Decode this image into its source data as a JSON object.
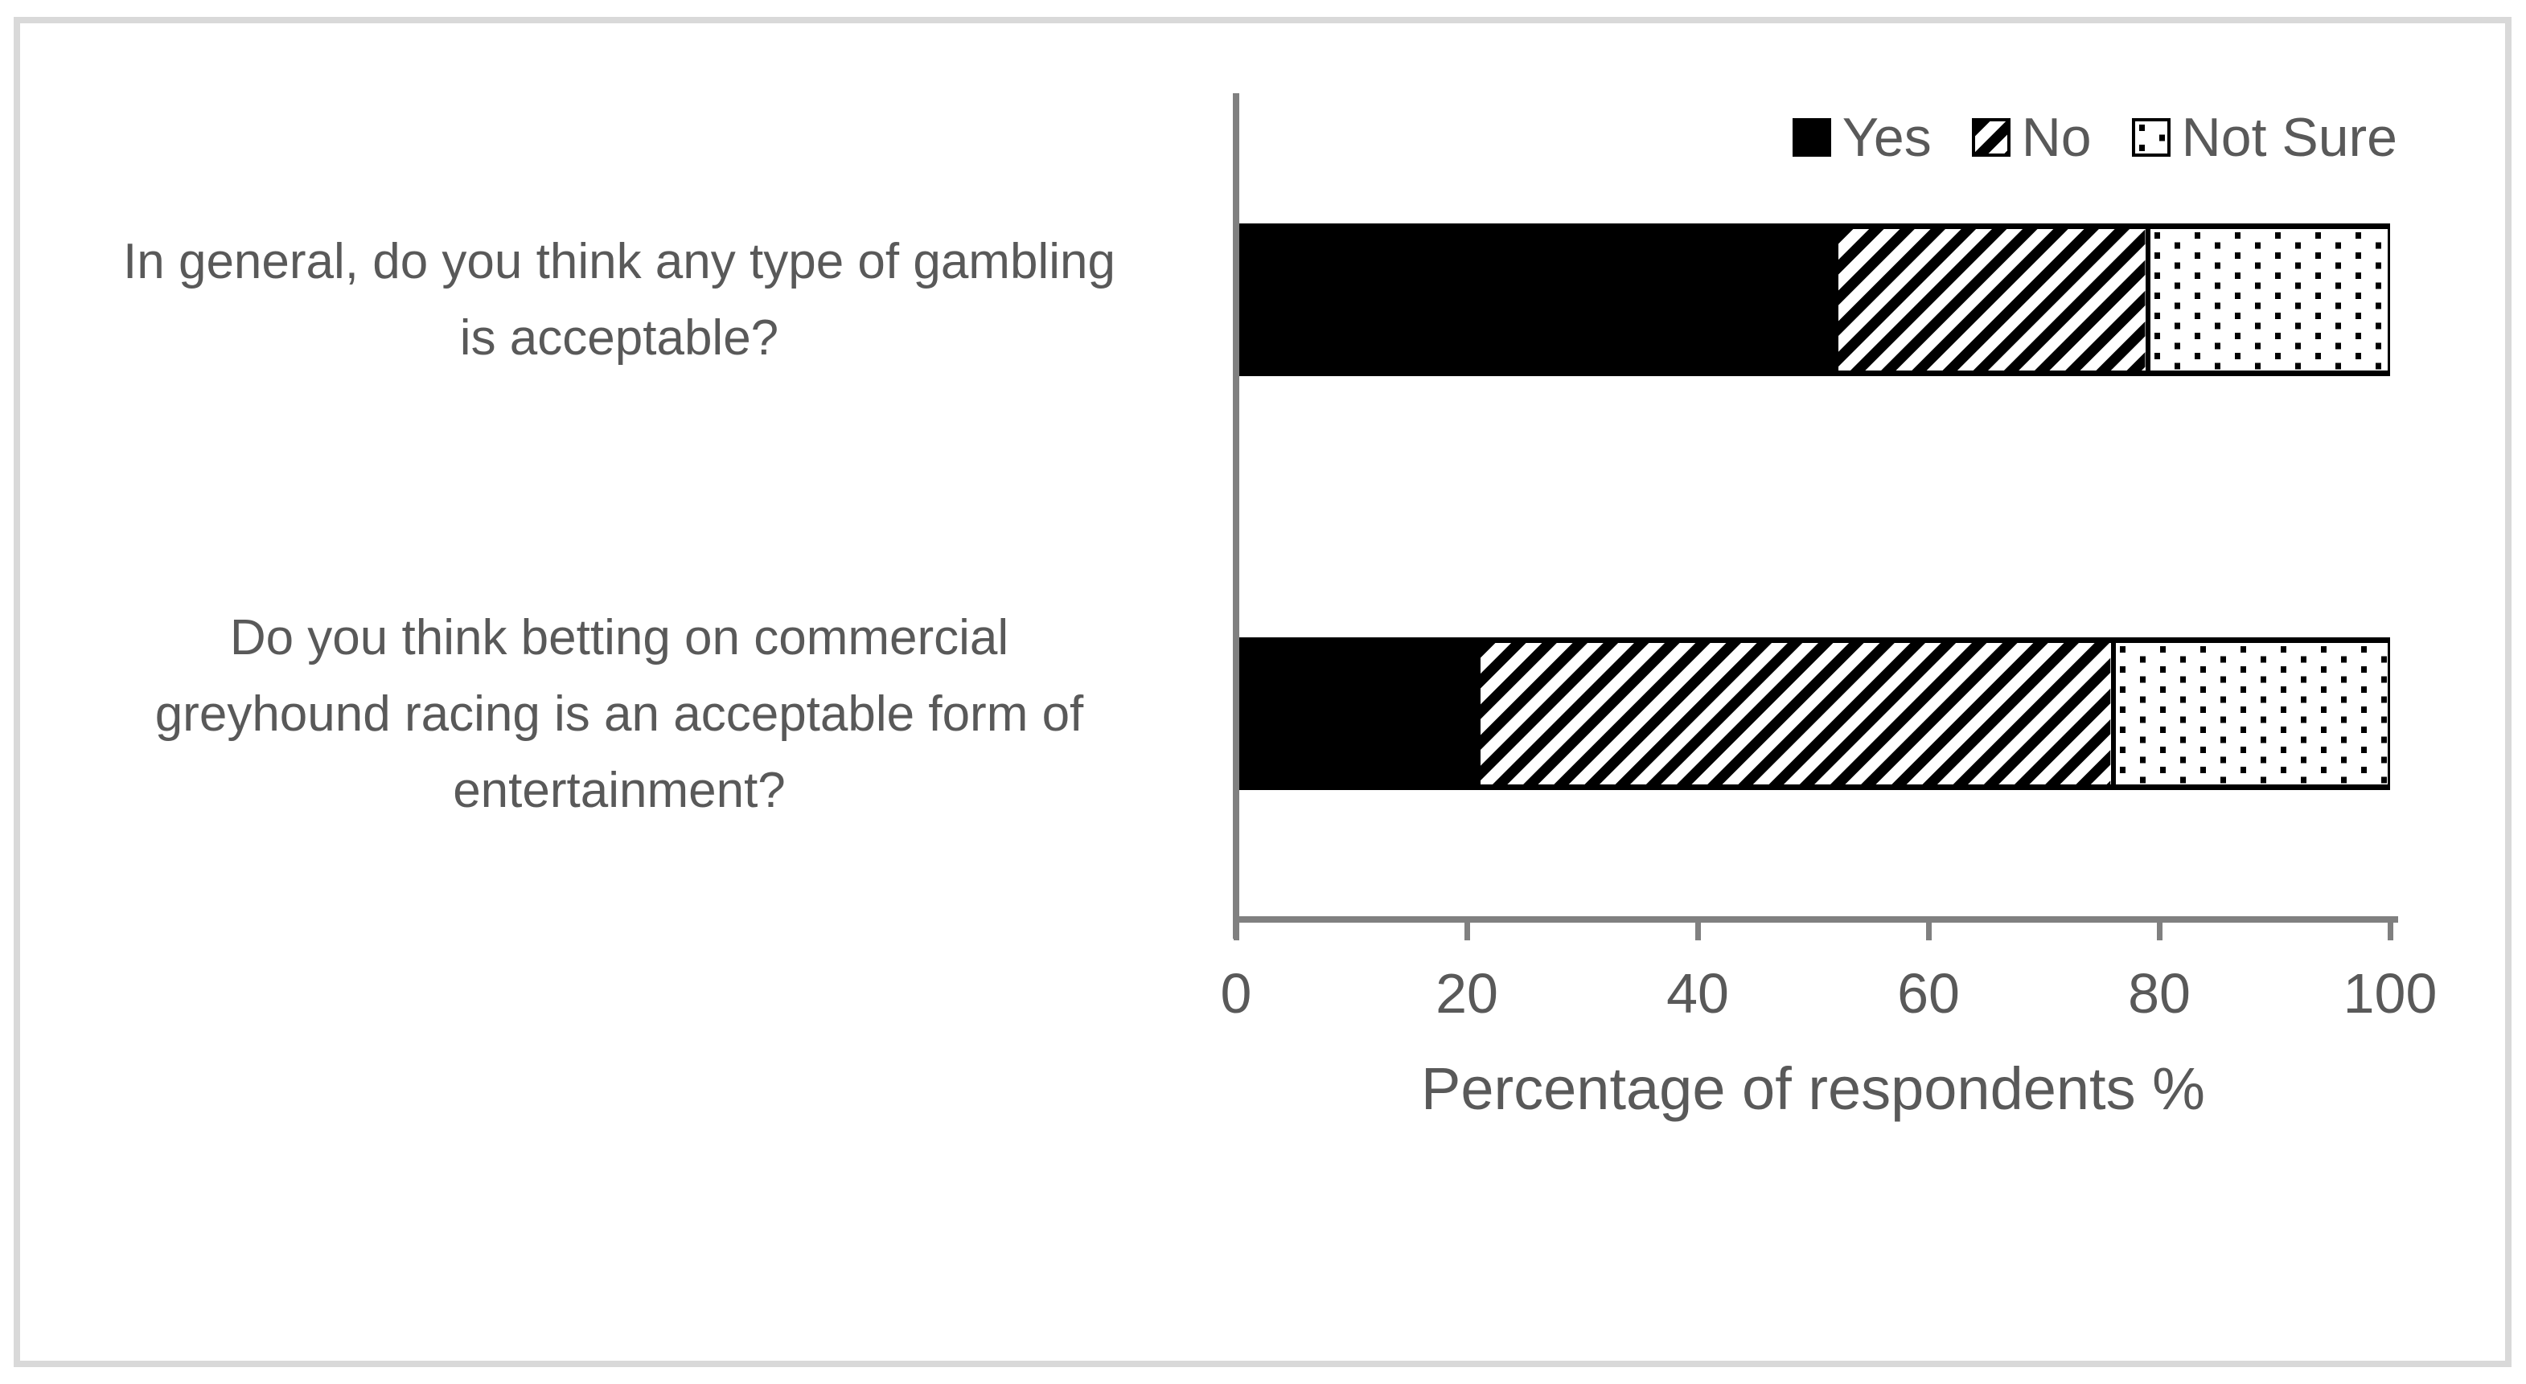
{
  "colors": {
    "text": "#595959",
    "axis_line": "#808080",
    "frame_border": "#d9d9d9",
    "bar_solid": "#000000",
    "background": "#ffffff"
  },
  "icons": {
    "legend_swatch_yes": "solid-black-square",
    "legend_swatch_no": "diagonal-hatch-square",
    "legend_swatch_not_sure": "dotted-square"
  },
  "chart_data": {
    "type": "bar",
    "stacked": true,
    "orientation": "horizontal",
    "title": "",
    "categories": [
      "In general, do you think any type of gambling is acceptable?",
      "Do you think betting on commercial greyhound racing is an acceptable form of entertainment?"
    ],
    "category_lines": [
      [
        "In general, do you think any type of gambling",
        "is acceptable?"
      ],
      [
        "Do you think betting on commercial",
        "greyhound racing is an acceptable form of",
        "entertainment?"
      ]
    ],
    "series": [
      {
        "name": "Yes",
        "pattern": "solid",
        "values": [
          52,
          21
        ]
      },
      {
        "name": "No",
        "pattern": "diagonal-hatch",
        "values": [
          27,
          55
        ]
      },
      {
        "name": "Not Sure",
        "pattern": "dotted",
        "values": [
          21,
          24
        ]
      }
    ],
    "xlabel": "Percentage of respondents %",
    "xlim": [
      0,
      100
    ],
    "xticks": [
      0,
      20,
      40,
      60,
      80,
      100
    ],
    "grid": false,
    "legend_position": "top-right"
  }
}
